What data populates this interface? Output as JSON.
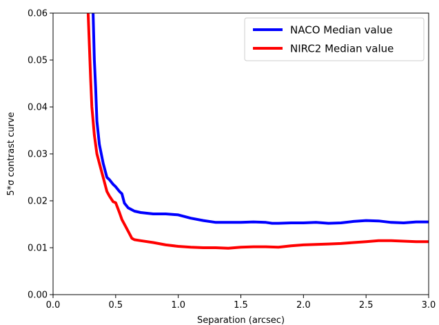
{
  "chart_data": {
    "type": "line",
    "xlabel": "Separation (arcsec)",
    "ylabel": "5*σ contrast curve",
    "xlim": [
      0.0,
      3.0
    ],
    "ylim": [
      0.0,
      0.06
    ],
    "xticks": [
      "0.0",
      "0.5",
      "1.0",
      "1.5",
      "2.0",
      "2.5",
      "3.0"
    ],
    "yticks": [
      "0.00",
      "0.01",
      "0.02",
      "0.03",
      "0.04",
      "0.05",
      "0.06"
    ],
    "grid": false,
    "legend_position": "top-right",
    "series": [
      {
        "name": "NACO Median value",
        "color": "#0000ff",
        "x": [
          0.32,
          0.33,
          0.34,
          0.35,
          0.37,
          0.4,
          0.43,
          0.45,
          0.48,
          0.5,
          0.53,
          0.55,
          0.57,
          0.6,
          0.65,
          0.7,
          0.8,
          0.9,
          1.0,
          1.1,
          1.2,
          1.3,
          1.4,
          1.5,
          1.6,
          1.7,
          1.75,
          1.8,
          1.9,
          2.0,
          2.1,
          2.2,
          2.3,
          2.4,
          2.5,
          2.6,
          2.7,
          2.8,
          2.9,
          3.0
        ],
        "y": [
          0.06,
          0.05,
          0.044,
          0.037,
          0.032,
          0.028,
          0.025,
          0.0245,
          0.0235,
          0.023,
          0.022,
          0.0215,
          0.0195,
          0.0185,
          0.0178,
          0.0175,
          0.0172,
          0.0172,
          0.017,
          0.0163,
          0.0158,
          0.0154,
          0.0154,
          0.0154,
          0.0155,
          0.0154,
          0.0152,
          0.0152,
          0.0153,
          0.0153,
          0.0154,
          0.0152,
          0.0153,
          0.0156,
          0.0158,
          0.0157,
          0.0154,
          0.0153,
          0.0155,
          0.0155
        ]
      },
      {
        "name": "NIRC2 Median value",
        "color": "#ff0000",
        "x": [
          0.28,
          0.29,
          0.3,
          0.31,
          0.33,
          0.35,
          0.38,
          0.4,
          0.43,
          0.45,
          0.48,
          0.5,
          0.53,
          0.55,
          0.58,
          0.6,
          0.63,
          0.65,
          0.7,
          0.8,
          0.9,
          1.0,
          1.1,
          1.2,
          1.3,
          1.4,
          1.5,
          1.6,
          1.7,
          1.8,
          1.9,
          2.0,
          2.1,
          2.2,
          2.3,
          2.4,
          2.5,
          2.6,
          2.7,
          2.8,
          2.9,
          3.0
        ],
        "y": [
          0.06,
          0.053,
          0.046,
          0.04,
          0.034,
          0.03,
          0.027,
          0.025,
          0.022,
          0.021,
          0.0198,
          0.0196,
          0.0175,
          0.016,
          0.0145,
          0.0135,
          0.012,
          0.0117,
          0.0115,
          0.0111,
          0.0106,
          0.0103,
          0.0101,
          0.01,
          0.01,
          0.0099,
          0.0101,
          0.0102,
          0.0102,
          0.0101,
          0.0104,
          0.0106,
          0.0107,
          0.0108,
          0.0109,
          0.0111,
          0.0113,
          0.0115,
          0.0115,
          0.0114,
          0.0113,
          0.0113
        ]
      }
    ]
  }
}
